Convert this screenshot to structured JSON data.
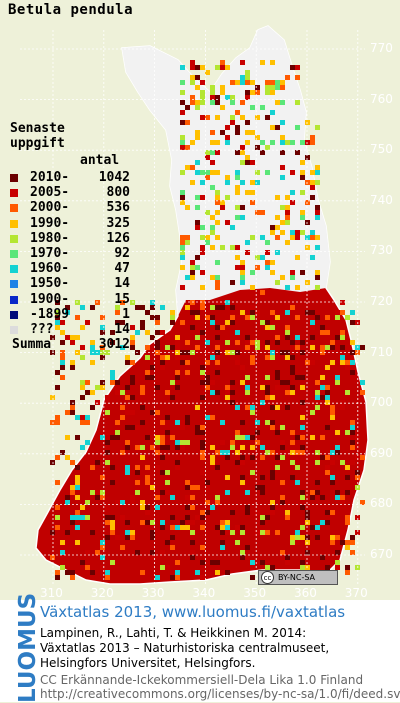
{
  "species": "Betula pendula",
  "legend": {
    "title_line1": "Senaste",
    "title_line2": "uppgift",
    "count_header": "antal",
    "rows": [
      {
        "label": "2010-",
        "count": "1042",
        "color": "#6b0000"
      },
      {
        "label": "2005-",
        "count": "800",
        "color": "#c80000"
      },
      {
        "label": "2000-",
        "count": "536",
        "color": "#ff5a00"
      },
      {
        "label": "1990-",
        "count": "325",
        "color": "#ffc000"
      },
      {
        "label": "1980-",
        "count": "126",
        "color": "#b4e632"
      },
      {
        "label": "1970-",
        "count": "92",
        "color": "#5ae678"
      },
      {
        "label": "1960-",
        "count": "47",
        "color": "#14d2d2"
      },
      {
        "label": "1950-",
        "count": "14",
        "color": "#1e82e6"
      },
      {
        "label": "1900-",
        "count": "15",
        "color": "#0a28c8"
      },
      {
        "label": "-1899",
        "count": "1",
        "color": "#000a78"
      },
      {
        "label": "???",
        "count": "14",
        "color": "#dcdcdc"
      }
    ],
    "total_label": "Summa",
    "total_count": "3012"
  },
  "grid": {
    "y_ticks": [
      "770",
      "760",
      "750",
      "740",
      "730",
      "720",
      "710",
      "700",
      "690",
      "680",
      "670"
    ],
    "x_ticks": [
      "310",
      "320",
      "330",
      "340",
      "350",
      "360",
      "370"
    ]
  },
  "license_badge": "BY-NC-SA",
  "footer": {
    "logo": "LUOMUS",
    "title": "Växtatlas 2013, www.luomus.fi/vaxtatlas",
    "citation_1": "Lampinen, R., Lahti, T. & Heikkinen M. 2014:",
    "citation_2": "Växtatlas 2013 – Naturhistoriska centralmuseet,",
    "citation_3": "Helsingfors Universitet, Helsingfors.",
    "license_1": "CC Erkännande-Icke­kommersiell-Dela Lika 1.0 Finland",
    "license_2": "http://creativecommons.org/licenses/by-nc-sa/1.0/fi/deed.sv"
  }
}
